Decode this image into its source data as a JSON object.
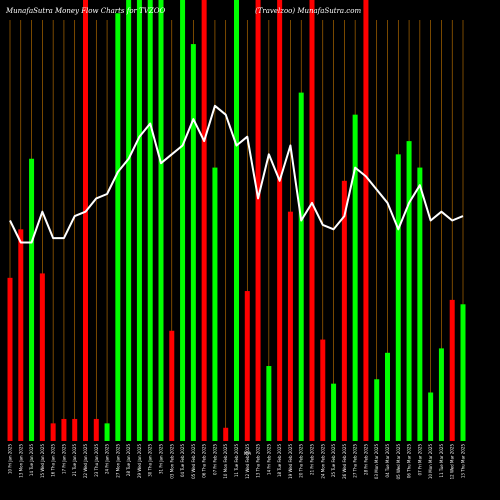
{
  "chart_data": {
    "type": "bar",
    "title_left": "MunafaSutra  Money Flow  Charts for TVZOO",
    "title_right": "(Travelzoo) MunafaSutra.com",
    "grid": true,
    "colors": {
      "up": "#00ff00",
      "down": "#ff0000",
      "grid": "#c87800",
      "line": "#ffffff",
      "background": "#000000"
    },
    "ylim": [
      0,
      100
    ],
    "mid_label": "N/A",
    "categories": [
      "10 Fri Jan 2025",
      "13 Mon Jan 2025",
      "14 Tue Jan 2025",
      "15 Wed Jan 2025",
      "16 Thu Jan 2025",
      "17 Fri Jan 2025",
      "21 Tue Jan 2025",
      "22 Wed Jan 2025",
      "23 Thu Jan 2025",
      "24 Fri Jan 2025",
      "27 Mon Jan 2025",
      "28 Tue Jan 2025",
      "29 Wed Jan 2025",
      "30 Thu Jan 2025",
      "31 Fri Jan 2025",
      "03 Mon Feb 2025",
      "04 Tue Feb 2025",
      "05 Wed Feb 2025",
      "06 Thu Feb 2025",
      "07 Fri Feb 2025",
      "10 Mon Feb 2025",
      "11 Tue Feb 2025",
      "12 Wed Feb 2025",
      "13 Thu Feb 2025",
      "14 Fri Feb 2025",
      "18 Tue Feb 2025",
      "19 Wed Feb 2025",
      "20 Thu Feb 2025",
      "21 Fri Feb 2025",
      "24 Mon Feb 2025",
      "25 Tue Feb 2025",
      "26 Wed Feb 2025",
      "27 Thu Feb 2025",
      "28 Fri Feb 2025",
      "03 Mon Mar 2025",
      "04 Tue Mar 2025",
      "05 Wed Mar 2025",
      "06 Thu Mar 2025",
      "07 Fri Mar 2025",
      "10 Mon Mar 2025",
      "11 Tue Mar 2025",
      "12 Wed Mar 2025",
      "13 Thu Mar 2025"
    ],
    "flow_direction": [
      "down",
      "down",
      "up",
      "down",
      "down",
      "down",
      "down",
      "down",
      "down",
      "up",
      "up",
      "up",
      "up",
      "up",
      "up",
      "down",
      "up",
      "up",
      "down",
      "up",
      "down",
      "up",
      "down",
      "down",
      "up",
      "down",
      "down",
      "up",
      "down",
      "down",
      "up",
      "down",
      "up",
      "down",
      "up",
      "up",
      "up",
      "up",
      "up",
      "up",
      "up",
      "down",
      "up"
    ],
    "bar_values": [
      37,
      48,
      64,
      38,
      4,
      5,
      5,
      100,
      5,
      4,
      97,
      100,
      100,
      100,
      100,
      25,
      100,
      90,
      100,
      62,
      3,
      100,
      34,
      100,
      17,
      100,
      52,
      79,
      100,
      23,
      13,
      59,
      74,
      100,
      14,
      20,
      65,
      68,
      62,
      11,
      21,
      32,
      31
    ],
    "line_values": [
      50,
      45,
      45,
      52,
      46,
      46,
      51,
      52,
      55,
      56,
      61,
      64,
      69,
      72,
      63,
      65,
      67,
      73,
      68,
      76,
      74,
      67,
      69,
      55,
      65,
      59,
      67,
      50,
      54,
      49,
      48,
      51,
      62,
      60,
      57,
      54,
      48,
      54,
      58,
      50,
      52,
      50,
      51
    ]
  }
}
